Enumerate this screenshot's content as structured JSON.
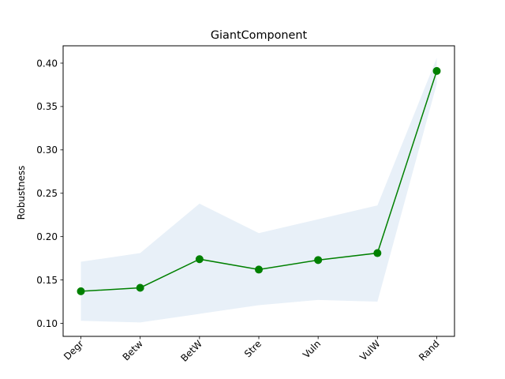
{
  "chart_data": {
    "type": "line",
    "title": "GiantComponent",
    "xlabel": "",
    "ylabel": "Robustness",
    "categories": [
      "Degr",
      "Betw",
      "BetW",
      "Stre",
      "Vuln",
      "VulW",
      "Rand"
    ],
    "series": [
      {
        "values": [
          0.137,
          0.141,
          0.174,
          0.162,
          0.173,
          0.181,
          0.391
        ],
        "lower": [
          0.103,
          0.101,
          0.111,
          0.121,
          0.127,
          0.125,
          0.376
        ],
        "upper": [
          0.171,
          0.181,
          0.238,
          0.204,
          0.22,
          0.236,
          0.406
        ],
        "color": "#008000",
        "band_color": "#e8f0f8"
      }
    ],
    "ylim": [
      0.085,
      0.42
    ],
    "yticks": [
      "0.10",
      "0.15",
      "0.20",
      "0.25",
      "0.30",
      "0.35",
      "0.40"
    ],
    "grid": false,
    "legend": "none"
  }
}
